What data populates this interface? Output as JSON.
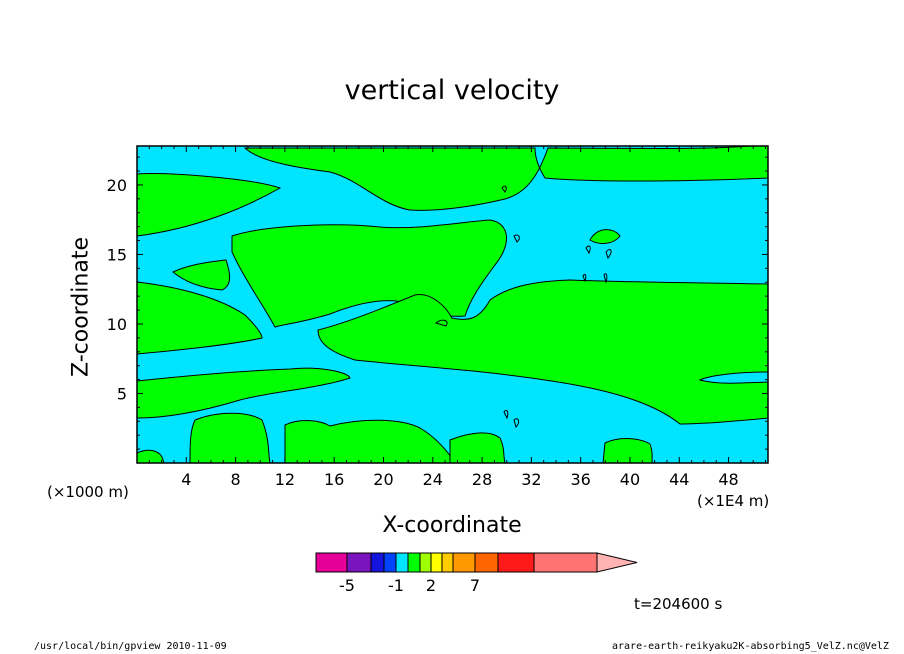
{
  "chart_data": {
    "type": "contour",
    "title": "vertical velocity",
    "xlabel": "X-coordinate",
    "ylabel": "Z-coordinate",
    "x_unit_left": "(×1000 m)",
    "x_unit_right": "(×1E4 m)",
    "xlim": [
      0,
      51.2
    ],
    "ylim": [
      0,
      22.8
    ],
    "x_ticks": [
      4,
      8,
      12,
      16,
      20,
      24,
      28,
      32,
      36,
      40,
      44,
      48
    ],
    "y_ticks": [
      5,
      10,
      15,
      20
    ],
    "colors": {
      "negative_region": "#00e5ff",
      "positive_region": "#00ff00",
      "contour_line": "#000000"
    },
    "regions_note_positive": "green = weak positive",
    "colorbar": {
      "segments": [
        "#e60099",
        "#7a14be",
        "#1414dc",
        "#0044ff",
        "#00e5ff",
        "#00ff00",
        "#a0ff00",
        "#ffff00",
        "#ffcc00",
        "#ff9900",
        "#ff6600",
        "#ff1a1a",
        "#ff7373",
        "#ffb3b3"
      ],
      "tick_labels": [
        "-5",
        "-1",
        "2",
        "7"
      ]
    },
    "time": "t=204600 s"
  },
  "footer": {
    "left": "/usr/local/bin/gpview  2010-11-09",
    "right": "arare-earth-reikyaku2K-absorbing5_VelZ.nc@VelZ"
  }
}
